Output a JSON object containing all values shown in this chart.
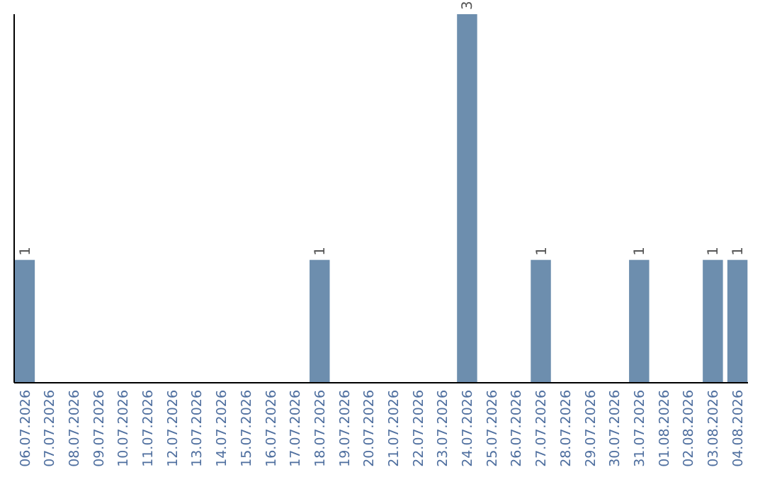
{
  "chart_data": {
    "type": "bar",
    "categories": [
      "06.07.2026",
      "07.07.2026",
      "08.07.2026",
      "09.07.2026",
      "10.07.2026",
      "11.07.2026",
      "12.07.2026",
      "13.07.2026",
      "14.07.2026",
      "15.07.2026",
      "16.07.2026",
      "17.07.2026",
      "18.07.2026",
      "19.07.2026",
      "20.07.2026",
      "21.07.2026",
      "22.07.2026",
      "23.07.2026",
      "24.07.2026",
      "25.07.2026",
      "26.07.2026",
      "27.07.2026",
      "28.07.2026",
      "29.07.2026",
      "30.07.2026",
      "31.07.2026",
      "01.08.2026",
      "02.08.2026",
      "03.08.2026",
      "04.08.2026"
    ],
    "values": [
      1,
      0,
      0,
      0,
      0,
      0,
      0,
      0,
      0,
      0,
      0,
      0,
      1,
      0,
      0,
      0,
      0,
      0,
      3,
      0,
      0,
      1,
      0,
      0,
      0,
      1,
      0,
      0,
      1,
      1
    ],
    "value_labels": [
      "1",
      null,
      null,
      null,
      null,
      null,
      null,
      null,
      null,
      null,
      null,
      null,
      "1",
      null,
      null,
      null,
      null,
      null,
      "3",
      null,
      null,
      "1",
      null,
      null,
      null,
      "1",
      null,
      null,
      "1",
      "1"
    ],
    "color": "#6d8eae",
    "ylim": [
      0,
      3
    ],
    "tick_labels": "x"
  }
}
